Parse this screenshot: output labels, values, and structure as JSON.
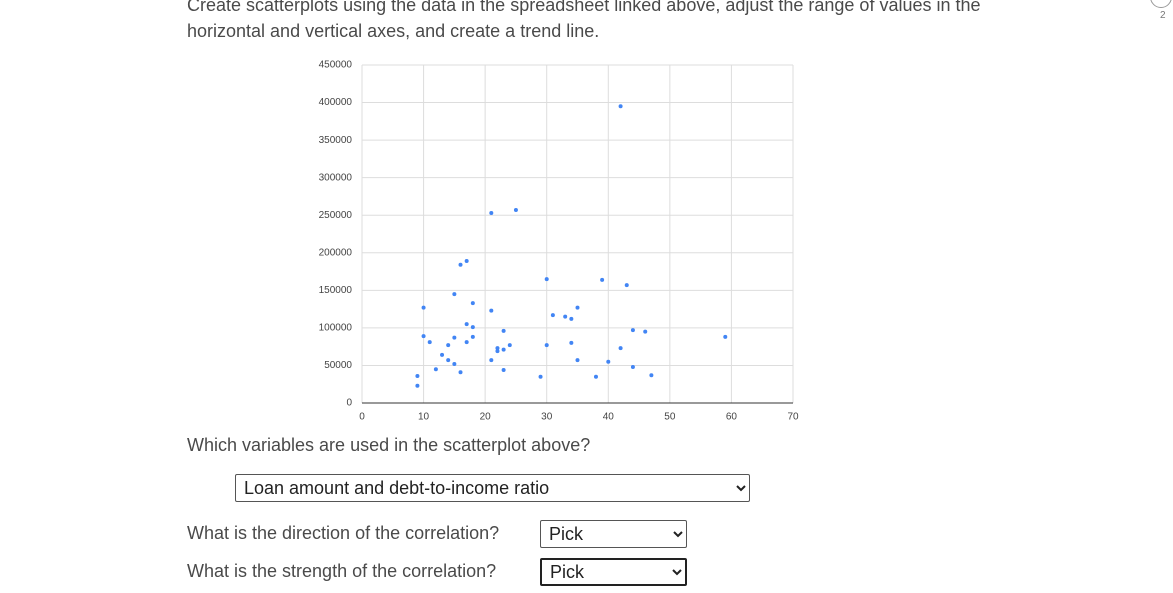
{
  "intro": "Create scatterplots using the data in the spreadsheet linked above, adjust the range of values in the horizontal and vertical axes, and create a trend line.",
  "badge": "2",
  "chart_data": {
    "type": "scatter",
    "color": "#4285f4",
    "grid": true,
    "x": [
      42,
      21,
      25,
      16,
      17,
      30,
      39,
      43,
      15,
      18,
      10,
      21,
      35,
      31,
      33,
      34,
      17,
      18,
      23,
      44,
      46,
      59,
      10,
      11,
      18,
      15,
      17,
      14,
      24,
      30,
      34,
      22,
      22,
      23,
      42,
      13,
      14,
      21,
      15,
      35,
      40,
      12,
      16,
      23,
      44,
      9,
      29,
      38,
      47,
      9
    ],
    "values": [
      395000,
      253000,
      257000,
      184000,
      189000,
      165000,
      164000,
      157000,
      145000,
      133000,
      127000,
      123000,
      127000,
      117000,
      115000,
      112000,
      105000,
      101000,
      96000,
      97000,
      95000,
      88000,
      89000,
      81000,
      88000,
      87000,
      81000,
      77000,
      77000,
      77000,
      80000,
      73000,
      69000,
      71000,
      73000,
      64000,
      57000,
      57000,
      52000,
      57000,
      55000,
      45000,
      41000,
      44000,
      48000,
      36000,
      35000,
      35000,
      37000,
      23000
    ],
    "xlim": [
      0,
      70
    ],
    "xticks": [
      0,
      10,
      20,
      30,
      40,
      50,
      60,
      70
    ],
    "ylim": [
      0,
      450000
    ],
    "yticks": [
      0,
      50000,
      100000,
      150000,
      200000,
      250000,
      300000,
      350000,
      400000,
      450000
    ]
  },
  "questions": [
    {
      "text": "Which variables are used in the scatterplot above?",
      "answer": "Loan amount and debt-to-income ratio"
    },
    {
      "text": "What is the direction of the correlation?",
      "answer": "Pick"
    },
    {
      "text": "What is the strength of the correlation?",
      "answer": "Pick"
    }
  ]
}
